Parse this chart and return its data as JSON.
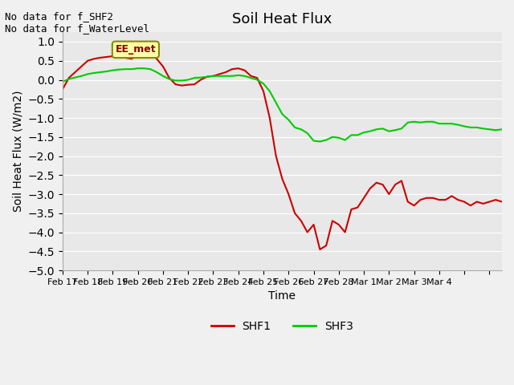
{
  "title": "Soil Heat Flux",
  "xlabel": "Time",
  "ylabel": "Soil Heat Flux (W/m2)",
  "ylim": [
    -5.0,
    1.25
  ],
  "yticks": [
    -5.0,
    -4.5,
    -4.0,
    -3.5,
    -3.0,
    -2.5,
    -2.0,
    -1.5,
    -1.0,
    -0.5,
    0.0,
    0.5,
    1.0
  ],
  "bg_color": "#e8e8e8",
  "fig_color": "#f0f0f0",
  "annotation_text": "No data for f_SHF2\nNo data for f_WaterLevel",
  "ee_met_label": "EE_met",
  "legend_labels": [
    "SHF1",
    "SHF3"
  ],
  "shf1_color": "#cc0000",
  "shf3_color": "#00cc00",
  "shf1_x": [
    0,
    0.5,
    1.0,
    1.5,
    2.0,
    2.5,
    3.0,
    3.5,
    4.0,
    4.5,
    5.0,
    5.5,
    6.0,
    6.5,
    7.0,
    7.5,
    8.0,
    8.5,
    9.0,
    9.5,
    10.0,
    10.5,
    11.0,
    11.5,
    12.0,
    12.5,
    13.0,
    13.5,
    14.0,
    14.5,
    15.0,
    15.5,
    16.0,
    16.5,
    17.0,
    17.5,
    18.0,
    18.5,
    19.0,
    19.5,
    20.0,
    20.5,
    21.0,
    21.5,
    22.0,
    22.5,
    23.0,
    23.5,
    24.0,
    24.5,
    25.0,
    25.5,
    26.0,
    26.5,
    27.0,
    27.5,
    28.0,
    28.5,
    29.0,
    29.5,
    30.0,
    30.5,
    31.0,
    31.5,
    32.0,
    32.5,
    33.0,
    33.5,
    34.0,
    34.5,
    35.0
  ],
  "shf1_y": [
    -0.25,
    0.05,
    0.2,
    0.35,
    0.5,
    0.55,
    0.58,
    0.6,
    0.62,
    0.6,
    0.58,
    0.55,
    0.65,
    0.7,
    0.68,
    0.55,
    0.35,
    0.05,
    -0.12,
    -0.15,
    -0.13,
    -0.12,
    0.0,
    0.08,
    0.1,
    0.15,
    0.2,
    0.28,
    0.3,
    0.25,
    0.1,
    0.05,
    -0.3,
    -1.0,
    -2.0,
    -2.6,
    -3.0,
    -3.5,
    -3.7,
    -4.0,
    -3.8,
    -4.45,
    -4.35,
    -3.7,
    -3.8,
    -4.0,
    -3.4,
    -3.35,
    -3.1,
    -2.85,
    -2.7,
    -2.75,
    -3.0,
    -2.75,
    -2.65,
    -3.2,
    -3.3,
    -3.15,
    -3.1,
    -3.1,
    -3.15,
    -3.15,
    -3.05,
    -3.15,
    -3.2,
    -3.3,
    -3.2,
    -3.25,
    -3.2,
    -3.15,
    -3.2
  ],
  "shf3_x": [
    0,
    0.5,
    1.0,
    1.5,
    2.0,
    2.5,
    3.0,
    3.5,
    4.0,
    4.5,
    5.0,
    5.5,
    6.0,
    6.5,
    7.0,
    7.5,
    8.0,
    8.5,
    9.0,
    9.5,
    10.0,
    10.5,
    11.0,
    11.5,
    12.0,
    12.5,
    13.0,
    13.5,
    14.0,
    14.5,
    15.0,
    15.5,
    16.0,
    16.5,
    17.0,
    17.5,
    18.0,
    18.5,
    19.0,
    19.5,
    20.0,
    20.5,
    21.0,
    21.5,
    22.0,
    22.5,
    23.0,
    23.5,
    24.0,
    24.5,
    25.0,
    25.5,
    26.0,
    26.5,
    27.0,
    27.5,
    28.0,
    28.5,
    29.0,
    29.5,
    30.0,
    30.5,
    31.0,
    31.5,
    32.0,
    32.5,
    33.0,
    33.5,
    34.0,
    34.5,
    35.0
  ],
  "shf3_y": [
    -0.05,
    0.02,
    0.06,
    0.1,
    0.15,
    0.18,
    0.2,
    0.22,
    0.25,
    0.27,
    0.28,
    0.28,
    0.3,
    0.3,
    0.28,
    0.2,
    0.1,
    0.02,
    -0.02,
    -0.02,
    0.0,
    0.05,
    0.06,
    0.08,
    0.1,
    0.1,
    0.1,
    0.1,
    0.12,
    0.1,
    0.05,
    0.0,
    -0.1,
    -0.3,
    -0.6,
    -0.9,
    -1.05,
    -1.25,
    -1.3,
    -1.4,
    -1.6,
    -1.62,
    -1.58,
    -1.5,
    -1.52,
    -1.58,
    -1.45,
    -1.45,
    -1.38,
    -1.35,
    -1.3,
    -1.28,
    -1.35,
    -1.32,
    -1.28,
    -1.12,
    -1.1,
    -1.12,
    -1.1,
    -1.1,
    -1.15,
    -1.15,
    -1.15,
    -1.18,
    -1.22,
    -1.25,
    -1.25,
    -1.28,
    -1.3,
    -1.32,
    -1.3
  ],
  "xtick_label_positions": [
    0,
    2,
    4,
    6,
    8,
    10,
    12,
    14,
    16,
    18,
    20,
    22,
    24,
    26,
    28,
    30,
    32,
    34
  ],
  "xtick_labels": [
    "Feb 17",
    "Feb 18",
    "Feb 19",
    "Feb 20",
    "Feb 21",
    "Feb 22",
    "Feb 23",
    "Feb 24",
    "Feb 25",
    "Feb 26",
    "Feb 27",
    "Feb 28",
    "Mar 1",
    "Mar 2",
    "Mar 3",
    "Mar 4",
    "",
    ""
  ]
}
